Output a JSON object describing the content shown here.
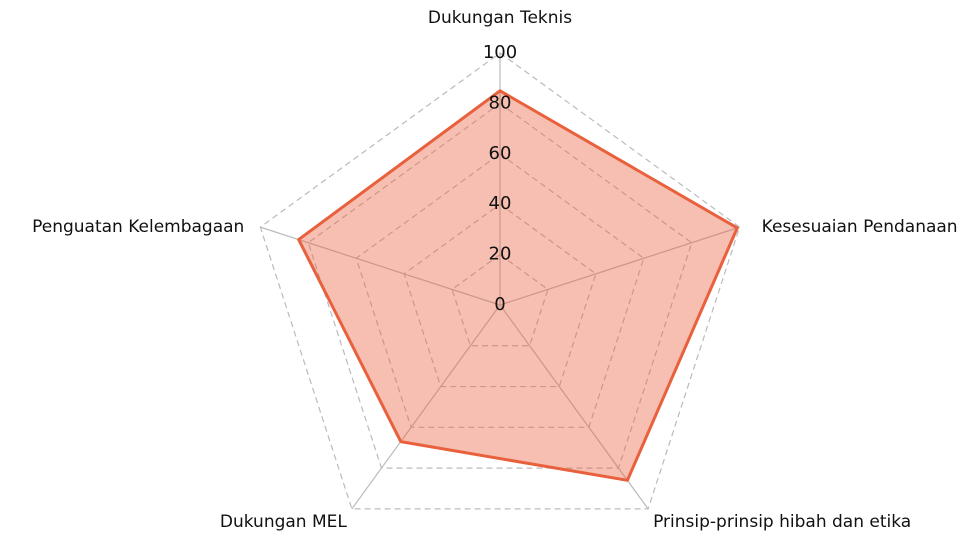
{
  "chart_data": {
    "type": "radar",
    "categories": [
      "Dukungan Teknis",
      "Kesesuaian Pendanaan",
      "Prinsip-prinsip hibah dan etika",
      "Dukungan MEL",
      "Penguatan Kelembagaan"
    ],
    "values": [
      85,
      99,
      86,
      67,
      84
    ],
    "color": "#e8603c",
    "ylim": [
      0,
      100
    ],
    "yticks": [
      0,
      20,
      40,
      60,
      80,
      100
    ],
    "grid": true
  }
}
